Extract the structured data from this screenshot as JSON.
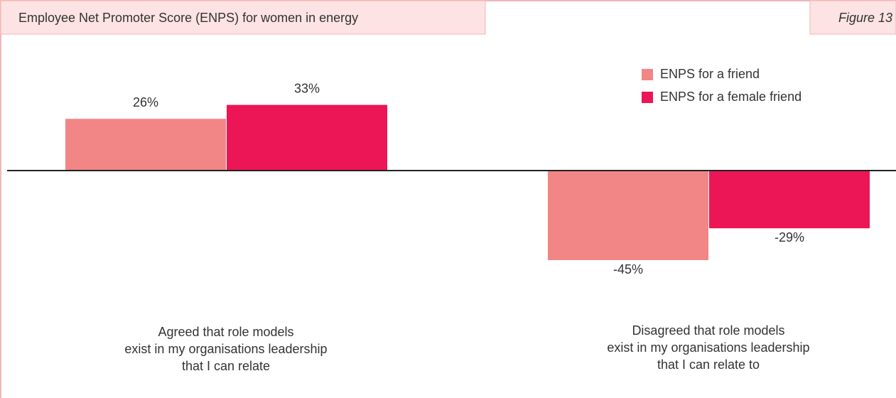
{
  "chart_data": {
    "type": "bar",
    "title": "Employee Net Promoter Score (ENPS) for women in energy",
    "annotation": "Figure 13",
    "categories": [
      "Agreed that role models\nexist in my organisations leadership\nthat I can relate",
      "Disagreed that role models\nexist in my organisations leadership\nthat I can relate to"
    ],
    "series": [
      {
        "name": "ENPS for a friend",
        "color": "#f28585",
        "values": [
          26,
          -45
        ],
        "value_labels": [
          "26%",
          "-45%"
        ]
      },
      {
        "name": "ENPS for a female friend",
        "color": "#ec1556",
        "values": [
          33,
          -29
        ],
        "value_labels": [
          "33%",
          "-29%"
        ]
      }
    ],
    "ylim": [
      -60,
      50
    ],
    "legend": "top-right"
  }
}
